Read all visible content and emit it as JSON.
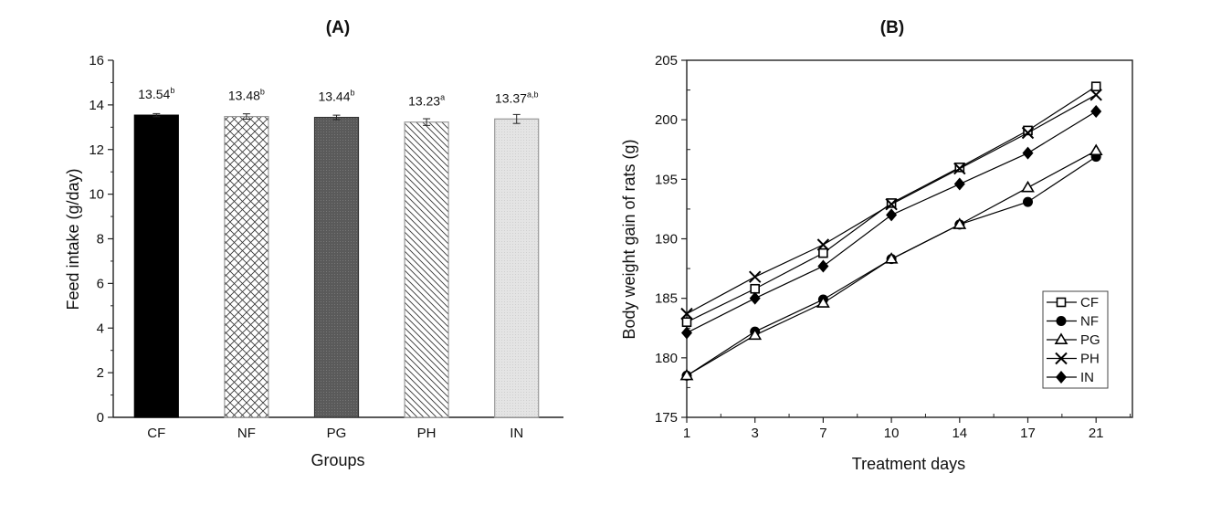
{
  "chart_data": [
    {
      "type": "bar",
      "title": "(A)",
      "xlabel": "Groups",
      "ylabel": "Feed intake (g/day)",
      "ylim": [
        0,
        16
      ],
      "yticks": [
        0,
        2,
        4,
        6,
        8,
        10,
        12,
        14,
        16
      ],
      "categories": [
        "CF",
        "NF",
        "PG",
        "PH",
        "IN"
      ],
      "values": [
        13.54,
        13.48,
        13.44,
        13.23,
        13.37
      ],
      "errors": [
        0.07,
        0.12,
        0.1,
        0.15,
        0.2
      ],
      "labels": [
        "13.54",
        "13.48",
        "13.44",
        "13.23",
        "13.37"
      ],
      "significance": [
        "b",
        "b",
        "b",
        "a",
        "a,b"
      ],
      "fills": [
        "solid-black",
        "crosshatch",
        "dark-gray",
        "diagonal",
        "light-gray"
      ],
      "grid": false
    },
    {
      "type": "line",
      "title": "(B)",
      "xlabel": "Treatment days",
      "ylabel": "Body weight gain of rats (g)",
      "ylim": [
        175,
        205
      ],
      "yticks": [
        175,
        180,
        185,
        190,
        195,
        200,
        205
      ],
      "x": [
        "1",
        "3",
        "7",
        "10",
        "14",
        "17",
        "21"
      ],
      "legend_position": "bottom-right",
      "grid": false,
      "series": [
        {
          "name": "CF",
          "marker": "open-square",
          "values": [
            183.0,
            185.8,
            188.8,
            193.0,
            196.0,
            199.1,
            202.8
          ]
        },
        {
          "name": "NF",
          "marker": "filled-circle",
          "values": [
            178.5,
            182.2,
            184.9,
            188.3,
            191.2,
            193.1,
            196.9
          ]
        },
        {
          "name": "PG",
          "marker": "open-triangle",
          "values": [
            178.5,
            181.9,
            184.6,
            188.3,
            191.2,
            194.3,
            197.4
          ]
        },
        {
          "name": "PH",
          "marker": "x-cross",
          "values": [
            183.7,
            186.8,
            189.5,
            192.9,
            195.9,
            198.9,
            202.1
          ]
        },
        {
          "name": "IN",
          "marker": "filled-diamond",
          "values": [
            182.1,
            185.0,
            187.7,
            192.0,
            194.6,
            197.2,
            200.7
          ]
        }
      ]
    }
  ]
}
